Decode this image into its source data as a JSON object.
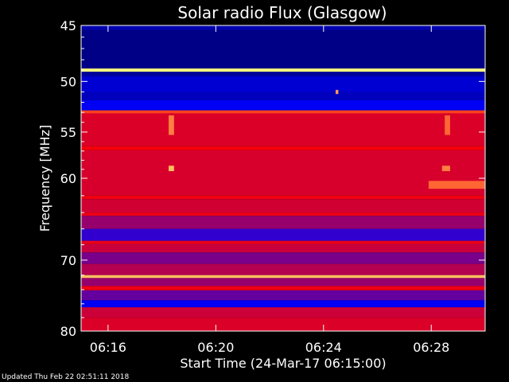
{
  "footer": {
    "updated": "Updated Thu Feb 22 02:51:11 2018"
  },
  "colors": {
    "background": "#000000",
    "low": "#000080",
    "mid": "#ff0000",
    "high": "#ffff80"
  },
  "chart_data": {
    "type": "heatmap",
    "title": "Solar radio Flux (Glasgow)",
    "xlabel": "Start Time (24-Mar-17 06:15:00)",
    "ylabel": "Frequency [MHz]",
    "x_unit": "minutes after 06:15:00",
    "xlim": [
      0,
      15
    ],
    "ylim": [
      45,
      80
    ],
    "y_scale": "log",
    "y_inverted": true,
    "x_ticks": [
      {
        "value": 1,
        "label": "06:16"
      },
      {
        "value": 5,
        "label": "06:20"
      },
      {
        "value": 9,
        "label": "06:24"
      },
      {
        "value": 13,
        "label": "06:28"
      }
    ],
    "y_ticks": [
      {
        "value": 45,
        "label": "45"
      },
      {
        "value": 50,
        "label": "50"
      },
      {
        "value": 55,
        "label": "55"
      },
      {
        "value": 60,
        "label": "60"
      },
      {
        "value": 70,
        "label": "70"
      },
      {
        "value": 80,
        "label": "80"
      }
    ],
    "bands": [
      {
        "f_start": 45.0,
        "f_end": 45.4,
        "level": 0.15
      },
      {
        "f_start": 45.4,
        "f_end": 48.8,
        "level": 0.08
      },
      {
        "f_start": 48.8,
        "f_end": 49.1,
        "level": 1.0
      },
      {
        "f_start": 49.1,
        "f_end": 49.5,
        "level": 0.12
      },
      {
        "f_start": 49.5,
        "f_end": 51.0,
        "level": 0.22
      },
      {
        "f_start": 51.0,
        "f_end": 51.8,
        "level": 0.18
      },
      {
        "f_start": 51.8,
        "f_end": 52.8,
        "level": 0.28
      },
      {
        "f_start": 52.8,
        "f_end": 53.1,
        "level": 0.85
      },
      {
        "f_start": 53.1,
        "f_end": 56.5,
        "level": 0.6
      },
      {
        "f_start": 56.5,
        "f_end": 56.9,
        "level": 0.75
      },
      {
        "f_start": 56.9,
        "f_end": 62.0,
        "level": 0.58
      },
      {
        "f_start": 62.0,
        "f_end": 62.4,
        "level": 0.72
      },
      {
        "f_start": 62.4,
        "f_end": 64.0,
        "level": 0.55
      },
      {
        "f_start": 64.0,
        "f_end": 64.4,
        "level": 0.7
      },
      {
        "f_start": 64.4,
        "f_end": 66.0,
        "level": 0.45
      },
      {
        "f_start": 66.0,
        "f_end": 67.5,
        "level": 0.35
      },
      {
        "f_start": 67.5,
        "f_end": 67.9,
        "level": 0.68
      },
      {
        "f_start": 67.9,
        "f_end": 69.0,
        "level": 0.5
      },
      {
        "f_start": 69.0,
        "f_end": 70.5,
        "level": 0.42
      },
      {
        "f_start": 70.5,
        "f_end": 72.0,
        "level": 0.48
      },
      {
        "f_start": 72.0,
        "f_end": 72.4,
        "level": 0.95
      },
      {
        "f_start": 72.4,
        "f_end": 73.5,
        "level": 0.45
      },
      {
        "f_start": 73.5,
        "f_end": 74.1,
        "level": 0.7
      },
      {
        "f_start": 74.1,
        "f_end": 75.5,
        "level": 0.4
      },
      {
        "f_start": 75.5,
        "f_end": 76.5,
        "level": 0.28
      },
      {
        "f_start": 76.5,
        "f_end": 78.0,
        "level": 0.52
      },
      {
        "f_start": 78.0,
        "f_end": 80.0,
        "level": 0.6
      }
    ],
    "features": [
      {
        "t_start": 3.25,
        "t_end": 3.45,
        "f_start": 53.3,
        "f_end": 55.3,
        "level": 0.9
      },
      {
        "t_start": 3.25,
        "t_end": 3.45,
        "f_start": 58.6,
        "f_end": 59.2,
        "level": 0.95
      },
      {
        "t_start": 13.5,
        "t_end": 13.7,
        "f_start": 53.3,
        "f_end": 55.3,
        "level": 0.88
      },
      {
        "t_start": 13.4,
        "t_end": 13.7,
        "f_start": 58.6,
        "f_end": 59.2,
        "level": 0.9
      },
      {
        "t_start": 12.9,
        "t_end": 15.0,
        "f_start": 60.3,
        "f_end": 61.2,
        "level": 0.88
      },
      {
        "t_start": 9.45,
        "t_end": 9.55,
        "f_start": 50.8,
        "f_end": 51.2,
        "level": 0.92
      }
    ]
  }
}
